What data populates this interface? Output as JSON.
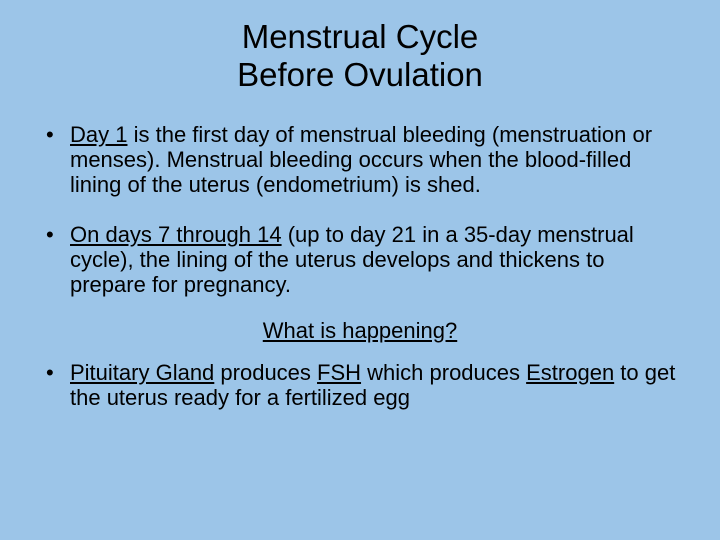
{
  "title_line1": "Menstrual Cycle",
  "title_line2": "Before Ovulation",
  "bullet1": {
    "lead": "Day 1",
    "rest": " is the first day of menstrual bleeding (menstruation or menses). Menstrual bleeding occurs when the blood-filled lining of the uterus (endometrium) is shed."
  },
  "bullet2": {
    "lead": "On days 7 through 14",
    "rest": " (up to day 21 in a 35-day menstrual cycle), the lining of the uterus develops and thickens to prepare for pregnancy."
  },
  "subheading": "What is happening?",
  "bullet3": {
    "p1": "Pituitary Gland",
    "t1": " produces ",
    "p2": "FSH",
    "t2": " which produces ",
    "p3": "Estrogen",
    "t3": " to get the uterus ready for a fertilized egg"
  },
  "colors": {
    "background": "#9cc5e8",
    "text": "#000000"
  },
  "typography": {
    "title_fontsize": 33,
    "body_fontsize": 22,
    "font_family": "Arial"
  }
}
